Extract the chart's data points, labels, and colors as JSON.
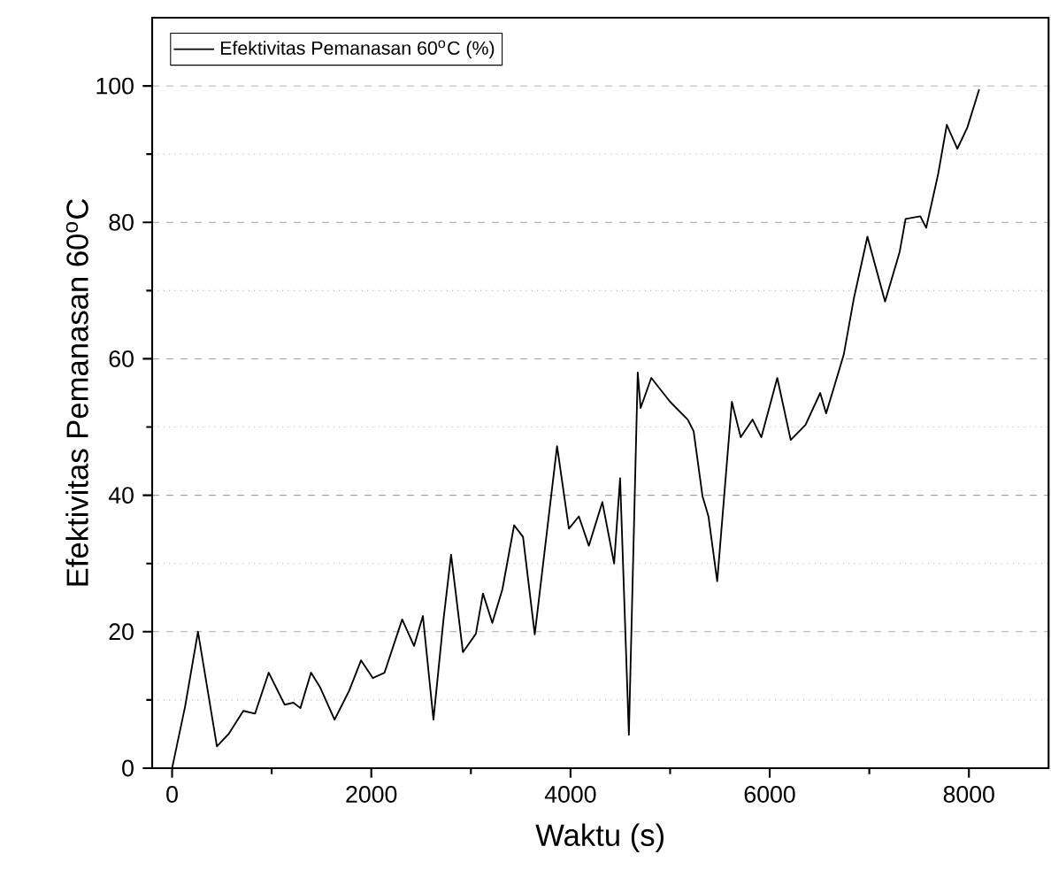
{
  "chart_data": {
    "type": "line",
    "xlabel": "Waktu (s)",
    "ylabel": "Efektivitas Pemanasan 60$^{o}$C",
    "xlim": [
      -200,
      8800
    ],
    "ylim": [
      0,
      110
    ],
    "xticks": [
      0,
      {
        "value": 1000,
        "label": null
      },
      2000,
      {
        "value": 3000,
        "label": null
      },
      4000,
      {
        "value": 5000,
        "label": null
      },
      6000,
      {
        "value": 7000,
        "label": null
      },
      8000
    ],
    "yticks": [
      0,
      {
        "value": 10,
        "label": null
      },
      20,
      {
        "value": 30,
        "label": null
      },
      40,
      {
        "value": 50,
        "label": null
      },
      60,
      {
        "value": 70,
        "label": null
      },
      80,
      {
        "value": 90,
        "label": null
      },
      100
    ],
    "grid": "y",
    "legend": "top left",
    "marker": "none",
    "line_style": "solid",
    "series": [
      {
        "name": "Efektivitas Pemanasan 60$^{o}$C (%)",
        "color": "#000000",
        "x": [
          0,
          130,
          260,
          450,
          567,
          715,
          833,
          970,
          1130,
          1218,
          1288,
          1395,
          1484,
          1631,
          1779,
          1897,
          2016,
          2133,
          2310,
          2429,
          2518,
          2624,
          2725,
          2801,
          2920,
          3050,
          3121,
          3215,
          3316,
          3434,
          3523,
          3641,
          3865,
          3984,
          4084,
          4184,
          4320,
          4438,
          4498,
          4586,
          4675,
          4704,
          4811,
          5000,
          5177,
          5236,
          5325,
          5385,
          5473,
          5620,
          5709,
          5828,
          5916,
          6076,
          6211,
          6359,
          6507,
          6566,
          6655,
          6743,
          6844,
          6981,
          7158,
          7305,
          7364,
          7512,
          7571,
          7690,
          7778,
          7884,
          7984,
          8103
        ],
        "values": [
          0,
          9,
          20,
          3.2,
          5,
          8.4,
          8,
          14,
          9.3,
          9.6,
          8.8,
          14,
          11.9,
          7.1,
          11.4,
          15.8,
          13.2,
          14,
          21.8,
          17.9,
          22.3,
          7.1,
          21.8,
          31.3,
          17,
          19.7,
          25.6,
          21.3,
          26.2,
          35.6,
          33.9,
          19.6,
          47.2,
          35.1,
          36.9,
          32.6,
          39,
          30,
          42.5,
          4.9,
          58,
          52.8,
          57.2,
          53.7,
          51.1,
          49.4,
          39.9,
          36.9,
          27.4,
          53.7,
          48.5,
          51.1,
          48.5,
          57.2,
          48.1,
          50.3,
          55,
          52,
          56.3,
          60.6,
          68.8,
          77.9,
          68.4,
          75.7,
          80.5,
          80.9,
          79.2,
          87,
          94.3,
          90.8,
          93.9,
          99.5
        ]
      }
    ]
  }
}
